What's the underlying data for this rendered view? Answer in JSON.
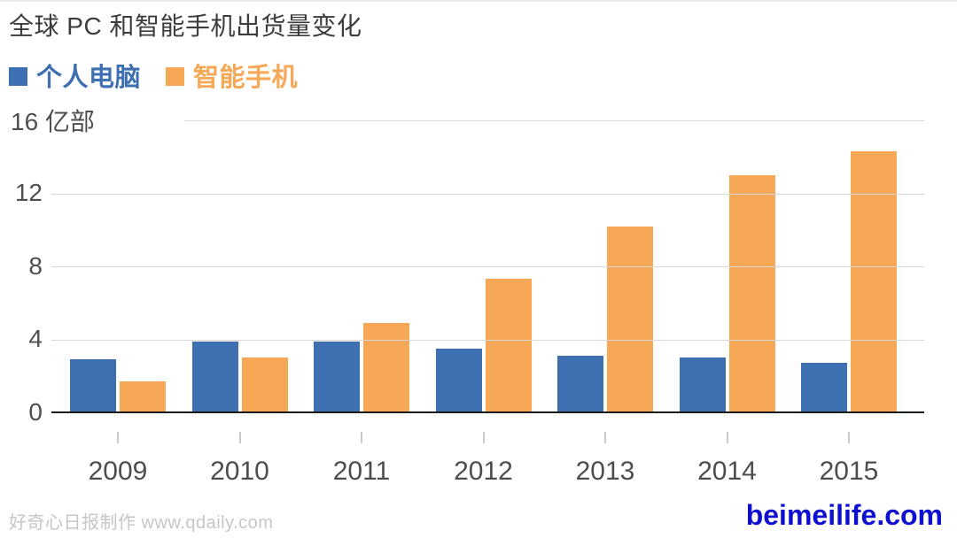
{
  "title": "全球 PC 和智能手机出货量变化",
  "legend": {
    "pc_label": "个人电脑",
    "smartphone_label": "智能手机"
  },
  "axis": {
    "top_label": "16 亿部",
    "unit": "亿部",
    "ticks": [
      "0",
      "4",
      "8",
      "12"
    ]
  },
  "footer": {
    "credit": "好奇心日报制作 www.qdaily.com",
    "watermark": "beimeilife.com",
    "watermark_color": "#0f0fd0"
  },
  "colors": {
    "pc": "#3e6fb1",
    "smartphone": "#f7a857",
    "gridline": "#d7d7d7",
    "axis_line": "#1c1c1c"
  },
  "chart_data": {
    "type": "bar",
    "title": "全球 PC 和智能手机出货量变化",
    "categories": [
      "2009",
      "2010",
      "2011",
      "2012",
      "2013",
      "2014",
      "2015"
    ],
    "series": [
      {
        "key": "pc",
        "name": "个人电脑",
        "color": "#3e6fb1",
        "values": [
          2.9,
          3.9,
          3.9,
          3.5,
          3.1,
          3.0,
          2.7
        ]
      },
      {
        "key": "smartphone",
        "name": "智能手机",
        "color": "#f7a857",
        "values": [
          1.7,
          3.0,
          4.9,
          7.3,
          10.2,
          13.0,
          14.3
        ]
      }
    ],
    "xlabel": "",
    "ylabel": "亿部",
    "ylim": [
      0,
      16
    ],
    "yticks": [
      0,
      4,
      8,
      12,
      16
    ],
    "grid": true,
    "legend_position": "top-left"
  }
}
